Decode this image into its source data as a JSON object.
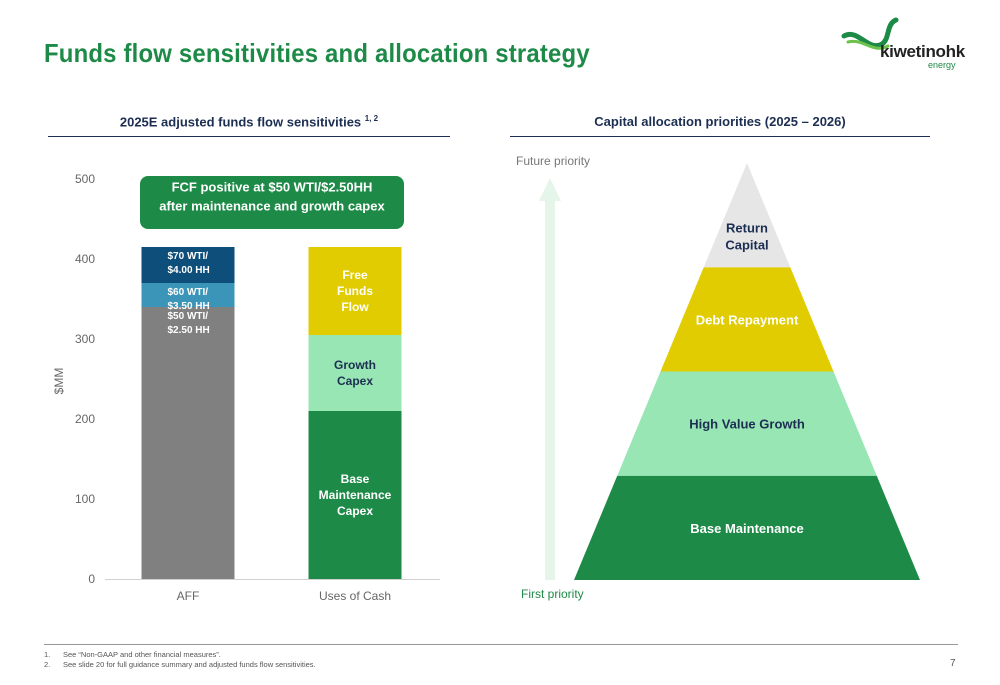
{
  "title": "Funds flow sensitivities and allocation strategy",
  "logo": {
    "word": "kiwetinohk",
    "sub": "energy"
  },
  "left_panel": {
    "heading": "2025E adjusted funds flow sensitivities",
    "heading_sup": "1, 2",
    "callout": [
      "FCF positive at $50 WTI/$2.50HH",
      "after maintenance and growth capex"
    ]
  },
  "right_panel": {
    "heading": "Capital allocation priorities (2025 – 2026)",
    "future_label": "Future priority",
    "first_label": "First priority",
    "pyramid": [
      {
        "label": [
          "Base Maintenance"
        ],
        "color": "#1e8a47",
        "text_color": "#ffffff"
      },
      {
        "label": [
          "High Value Growth"
        ],
        "color": "#98e6b4",
        "text_color": "#1c2e52"
      },
      {
        "label": [
          "Debt Repayment"
        ],
        "color": "#e0cc00",
        "text_color": "#ffffff"
      },
      {
        "label": [
          "Return",
          "Capital"
        ],
        "color": "#e6e6e6",
        "text_color": "#1c2e52"
      }
    ]
  },
  "chart_data": {
    "type": "bar",
    "stacked": true,
    "categories": [
      "AFF",
      "Uses of Cash"
    ],
    "ylabel": "$MM",
    "ylim": [
      0,
      500
    ],
    "yticks": [
      0,
      100,
      200,
      300,
      400,
      500
    ],
    "grid": false,
    "stacks": [
      {
        "category": "AFF",
        "segments": [
          {
            "label": [
              "$50 WTI/",
              "$2.50 HH"
            ],
            "value": 340,
            "color": "#808080",
            "label_align": "top-left"
          },
          {
            "label": [
              "$60 WTI/",
              "$3.50 HH"
            ],
            "value": 30,
            "color": "#3a95b8",
            "label_align": "top-left"
          },
          {
            "label": [
              "$70 WTI/",
              "$4.00 HH"
            ],
            "value": 45,
            "color": "#0d4f7a",
            "label_align": "top-left"
          }
        ]
      },
      {
        "category": "Uses of Cash",
        "segments": [
          {
            "label": [
              "Base",
              "Maintenance",
              "Capex"
            ],
            "value": 210,
            "color": "#1e8a47",
            "label_align": "center",
            "text_color": "#ffffff"
          },
          {
            "label": [
              "Growth",
              "Capex"
            ],
            "value": 95,
            "color": "#98e6b4",
            "label_align": "center",
            "text_color": "#1c2e52"
          },
          {
            "label": [
              "Free",
              "Funds",
              "Flow"
            ],
            "value": 110,
            "color": "#e0cc00",
            "label_align": "center",
            "text_color": "#ffffff"
          }
        ]
      }
    ]
  },
  "footnotes": [
    {
      "n": "1.",
      "text": "See “Non-GAAP and other financial measures”."
    },
    {
      "n": "2.",
      "text": "See slide 20 for full guidance summary and adjusted funds flow sensitivities."
    }
  ],
  "page_number": "7"
}
